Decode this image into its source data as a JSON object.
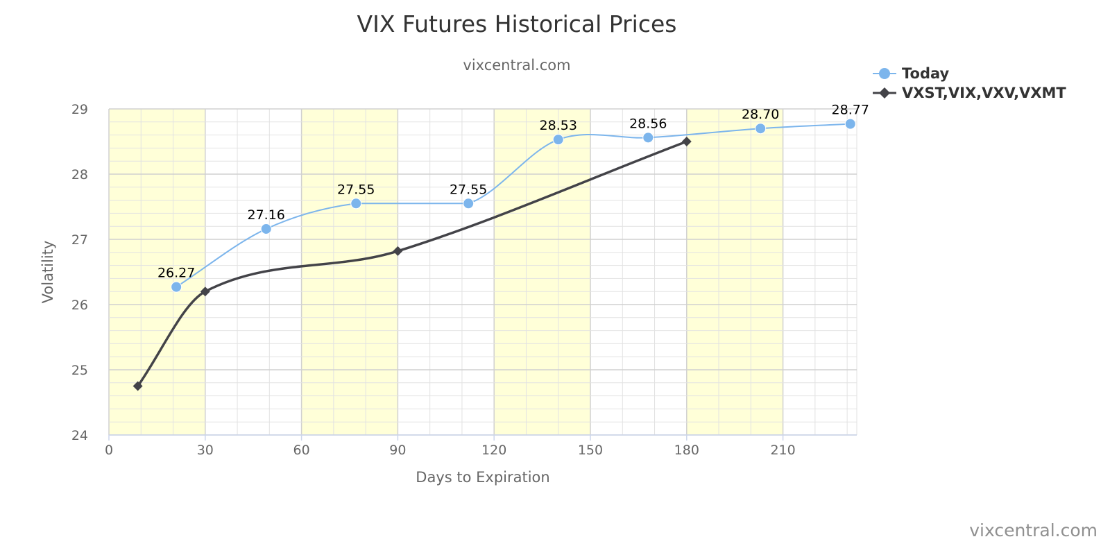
{
  "chart_data": {
    "type": "line",
    "title": "VIX Futures Historical Prices",
    "subtitle": "vixcentral.com",
    "xlabel": "Days to Expiration",
    "ylabel": "Volatility",
    "xlim": [
      0,
      233
    ],
    "ylim": [
      24,
      29
    ],
    "x_ticks": [
      0,
      30,
      60,
      90,
      120,
      150,
      180,
      210
    ],
    "y_ticks": [
      24,
      25,
      26,
      27,
      28,
      29
    ],
    "x_minor_step": 10,
    "y_minor_step": 0.2,
    "grid": true,
    "shaded_bands": [
      [
        0,
        30
      ],
      [
        60,
        90
      ],
      [
        120,
        150
      ],
      [
        180,
        210
      ]
    ],
    "legend_position": "top-right",
    "series": [
      {
        "name": "Today",
        "color": "#7cb5ec",
        "marker": "circle",
        "smooth": true,
        "x": [
          21,
          49,
          77,
          112,
          140,
          168,
          203,
          231
        ],
        "y": [
          26.27,
          27.16,
          27.55,
          27.55,
          28.53,
          28.56,
          28.7,
          28.77
        ],
        "labels": [
          "26.27",
          "27.16",
          "27.55",
          "27.55",
          "28.53",
          "28.56",
          "28.70",
          "28.77"
        ]
      },
      {
        "name": "VXST,VIX,VXV,VXMT",
        "color": "#434348",
        "marker": "diamond",
        "smooth": true,
        "x": [
          9,
          30,
          90,
          180
        ],
        "y": [
          24.75,
          26.2,
          26.82,
          28.5
        ]
      }
    ],
    "credit": "vixcentral.com"
  }
}
